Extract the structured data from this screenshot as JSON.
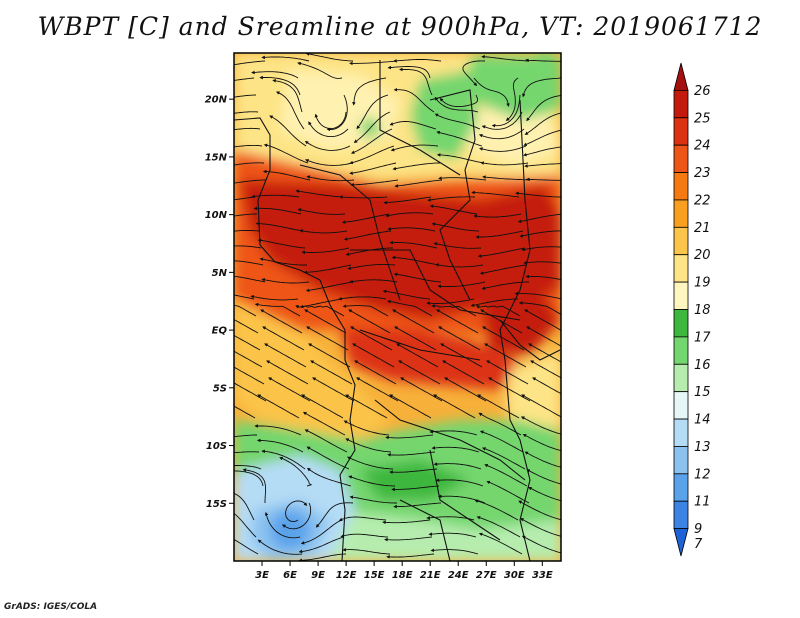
{
  "title": "WBPT [C] and Sreamline at 900hPa, VT: 2019061712",
  "footer": "GrADS: IGES/COLA",
  "map": {
    "lon_range": [
      0,
      35
    ],
    "lat_range": [
      -20,
      24
    ],
    "lat_ticks": [
      {
        "value": 20,
        "label": "20N"
      },
      {
        "value": 15,
        "label": "15N"
      },
      {
        "value": 10,
        "label": "10N"
      },
      {
        "value": 5,
        "label": "5N"
      },
      {
        "value": 0,
        "label": "EQ"
      },
      {
        "value": -5,
        "label": "5S"
      },
      {
        "value": -10,
        "label": "10S"
      },
      {
        "value": -15,
        "label": "15S"
      }
    ],
    "lon_ticks": [
      {
        "value": 3,
        "label": "3E"
      },
      {
        "value": 6,
        "label": "6E"
      },
      {
        "value": 9,
        "label": "9E"
      },
      {
        "value": 12,
        "label": "12E"
      },
      {
        "value": 15,
        "label": "15E"
      },
      {
        "value": 18,
        "label": "18E"
      },
      {
        "value": 21,
        "label": "21E"
      },
      {
        "value": 24,
        "label": "24E"
      },
      {
        "value": 27,
        "label": "27E"
      },
      {
        "value": 30,
        "label": "30E"
      },
      {
        "value": 33,
        "label": "33E"
      }
    ]
  },
  "colorbar": {
    "levels": [
      {
        "label": "26",
        "color": "#a50f0f"
      },
      {
        "label": "25",
        "color": "#c41a0e"
      },
      {
        "label": "24",
        "color": "#dc3212"
      },
      {
        "label": "23",
        "color": "#ee5518"
      },
      {
        "label": "22",
        "color": "#f57a12"
      },
      {
        "label": "21",
        "color": "#f9a020"
      },
      {
        "label": "20",
        "color": "#fbc44a"
      },
      {
        "label": "19",
        "color": "#fde486"
      },
      {
        "label": "18",
        "color": "#fff6bf"
      },
      {
        "label": "17",
        "color": "#3db73d"
      },
      {
        "label": "16",
        "color": "#74d66e"
      },
      {
        "label": "15",
        "color": "#b6edaf"
      },
      {
        "label": "14",
        "color": "#e5f7f7"
      },
      {
        "label": "13",
        "color": "#b5dcf5"
      },
      {
        "label": "12",
        "color": "#8bc2f0"
      },
      {
        "label": "11",
        "color": "#5aa3ea"
      },
      {
        "label": "9",
        "color": "#3c84e3"
      },
      {
        "label": "7",
        "color": "#1e63d6"
      }
    ]
  }
}
